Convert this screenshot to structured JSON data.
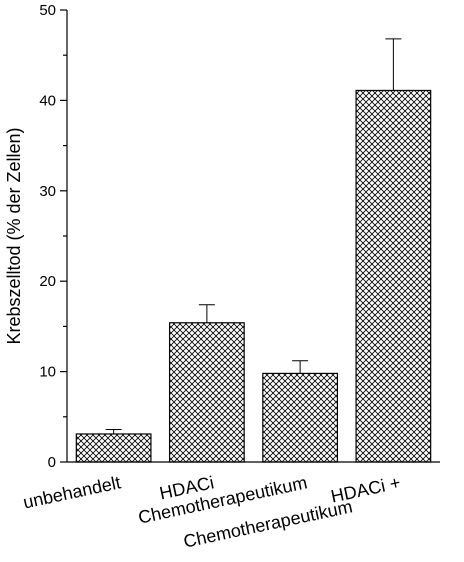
{
  "chart_data": {
    "type": "bar",
    "categories": [
      [
        "unbehandelt"
      ],
      [
        "HDACi"
      ],
      [
        "Chemotherapeutikum"
      ],
      [
        "HDACi +",
        "Chemotherapeutikum"
      ]
    ],
    "values": [
      3.1,
      15.4,
      9.8,
      41.1
    ],
    "error_upper": [
      3.6,
      17.4,
      11.2,
      46.8
    ],
    "title": "",
    "xlabel": "",
    "ylabel": "Krebszelltod (% der Zellen)",
    "ylim": [
      0,
      50
    ],
    "yticks": [
      0,
      10,
      20,
      30,
      40,
      50
    ],
    "grid": false,
    "bar_fill": "crosshatch",
    "bar_color": "#ffffff",
    "line_color": "#000000"
  }
}
